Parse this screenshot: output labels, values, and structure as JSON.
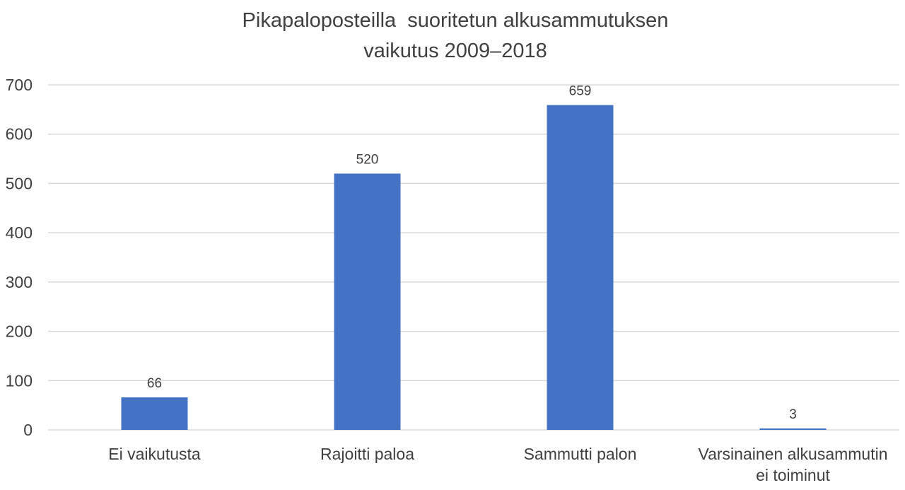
{
  "chart_data": {
    "type": "bar",
    "title_lines": [
      "Pikapaloposteilla  suoritetun alkusammutuksen",
      "vaikutus 2009–2018"
    ],
    "categories": [
      [
        "Ei vaikutusta"
      ],
      [
        "Rajoitti paloa"
      ],
      [
        "Sammutti palon"
      ],
      [
        "Varsinainen alkusammutin",
        "ei toiminut"
      ]
    ],
    "values": [
      66,
      520,
      659,
      3
    ],
    "data_labels": [
      "66",
      "520",
      "659",
      "3"
    ],
    "ylim": [
      0,
      700
    ],
    "yticks": [
      0,
      100,
      200,
      300,
      400,
      500,
      600,
      700
    ],
    "xlabel": "",
    "ylabel": "",
    "grid": true,
    "legend": "none",
    "bar_color": "#4472C4",
    "grid_color": "#D9D9D9",
    "text_color": "#404040"
  }
}
